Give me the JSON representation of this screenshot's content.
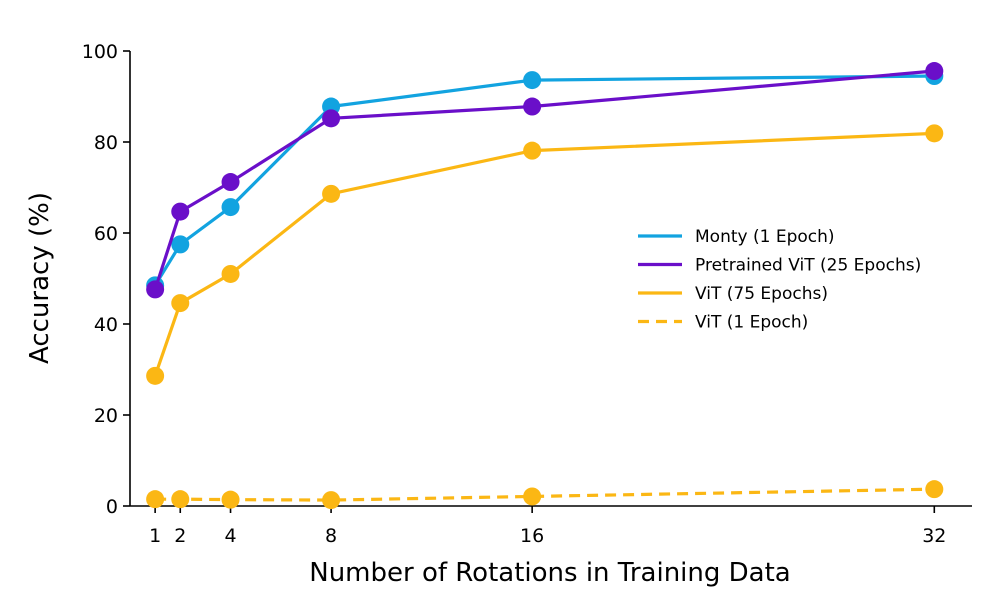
{
  "chart_data": {
    "type": "line",
    "title": "",
    "xlabel": "Number of Rotations in Training Data",
    "ylabel": "Accuracy (%)",
    "x": [
      1,
      2,
      4,
      8,
      16,
      32
    ],
    "x_ticks": [
      "1",
      "2",
      "4",
      "8",
      "16",
      "32"
    ],
    "y_ticks": [
      "0",
      "20",
      "40",
      "60",
      "80",
      "100"
    ],
    "xlim": [
      0,
      33.5
    ],
    "ylim": [
      0,
      100
    ],
    "grid": false,
    "legend_position": "center-right",
    "series": [
      {
        "name": "Monty (1 Epoch)",
        "color": "#12a3e0",
        "dashed": false,
        "values": [
          48.5,
          57.5,
          65.7,
          87.8,
          93.6,
          94.5
        ]
      },
      {
        "name": "Pretrained ViT (25 Epochs)",
        "color": "#6a0fc9",
        "dashed": false,
        "values": [
          47.6,
          64.7,
          71.2,
          85.2,
          87.8,
          95.6
        ]
      },
      {
        "name": "ViT (75 Epochs)",
        "color": "#fbb714",
        "dashed": false,
        "values": [
          28.6,
          44.6,
          51.0,
          68.6,
          78.1,
          81.9
        ]
      },
      {
        "name": "ViT (1 Epoch)",
        "color": "#fbb714",
        "dashed": true,
        "values": [
          1.5,
          1.5,
          1.4,
          1.3,
          2.1,
          3.7
        ]
      }
    ]
  }
}
